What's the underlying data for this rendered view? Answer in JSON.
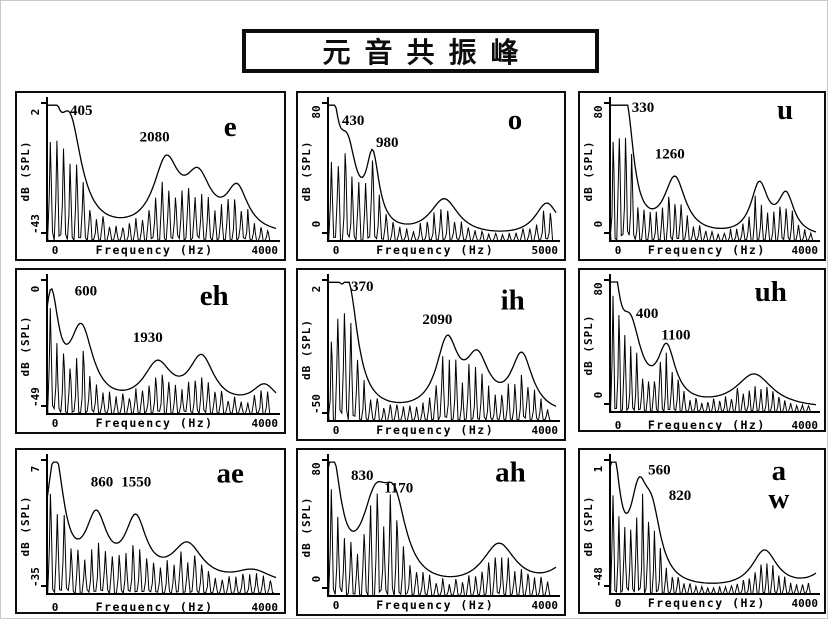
{
  "header": {
    "title": "元音共振峰"
  },
  "colors": {
    "ink": "#000000",
    "paper": "#ffffff"
  },
  "chart_data": [
    {
      "type": "line",
      "vowel": "e",
      "vowel_lines": [
        "e"
      ],
      "vowel_fx": 0.8,
      "vowel_fy": 0.25,
      "formants": [
        405,
        2080
      ],
      "formant_labels": [
        {
          "text": "405",
          "fx": 0.15,
          "fy": 0.1
        },
        {
          "text": "2080",
          "fx": 0.47,
          "fy": 0.29
        }
      ],
      "ylabel": "dB (SPL)",
      "xlabel": "Frequency (Hz)",
      "y_top": "2",
      "y_bottom": "-43",
      "x_min": "0",
      "x_max_label": "4000",
      "xlim": [
        0,
        4000
      ],
      "envelope_peaks": [
        [
          50,
          0.88,
          170
        ],
        [
          405,
          0.7,
          250
        ],
        [
          2080,
          0.48,
          270
        ],
        [
          2640,
          0.36,
          280
        ],
        [
          3320,
          0.3,
          230
        ]
      ],
      "baseline": 0.03,
      "harmonic_spacing": 115,
      "seed": 11,
      "x_label_dy": 13
    },
    {
      "type": "line",
      "vowel": "o",
      "vowel_lines": [
        "o"
      ],
      "vowel_fx": 0.82,
      "vowel_fy": 0.2,
      "formants": [
        430,
        980
      ],
      "formant_labels": [
        {
          "text": "430",
          "fx": 0.11,
          "fy": 0.17
        },
        {
          "text": "980",
          "fx": 0.26,
          "fy": 0.33
        }
      ],
      "ylabel": "dB (SPL)",
      "xlabel": "Frequency (Hz)",
      "y_top": "80",
      "y_bottom": "0",
      "x_min": "0",
      "x_max_label": "5000",
      "xlim": [
        0,
        5000
      ],
      "envelope_peaks": [
        [
          60,
          0.92,
          190
        ],
        [
          430,
          0.5,
          240
        ],
        [
          980,
          0.5,
          170
        ],
        [
          2550,
          0.26,
          380
        ],
        [
          4800,
          0.24,
          320
        ]
      ],
      "baseline": 0.02,
      "harmonic_spacing": 150,
      "seed": 23,
      "x_label_dy": 13
    },
    {
      "type": "line",
      "vowel": "u",
      "vowel_lines": [
        "u"
      ],
      "vowel_fx": 0.85,
      "vowel_fy": 0.13,
      "formants": [
        330,
        1260
      ],
      "formant_labels": [
        {
          "text": "330",
          "fx": 0.16,
          "fy": 0.08
        },
        {
          "text": "1260",
          "fx": 0.29,
          "fy": 0.41
        }
      ],
      "ylabel": "dB (SPL)",
      "xlabel": "Frequency (Hz)",
      "y_top": "80",
      "y_bottom": "0",
      "x_min": "0",
      "x_max_label": "4000",
      "xlim": [
        0,
        4000
      ],
      "envelope_peaks": [
        [
          60,
          0.95,
          160
        ],
        [
          330,
          0.7,
          160
        ],
        [
          1260,
          0.4,
          250
        ],
        [
          2900,
          0.36,
          200
        ],
        [
          3420,
          0.28,
          190
        ]
      ],
      "baseline": 0.02,
      "harmonic_spacing": 120,
      "seed": 37,
      "x_label_dy": 13
    },
    {
      "type": "line",
      "vowel": "eh",
      "vowel_lines": [
        "eh"
      ],
      "vowel_fx": 0.73,
      "vowel_fy": 0.2,
      "formants": [
        600,
        1930
      ],
      "formant_labels": [
        {
          "text": "600",
          "fx": 0.17,
          "fy": 0.13
        },
        {
          "text": "1930",
          "fx": 0.44,
          "fy": 0.47
        }
      ],
      "ylabel": "dB (SPL)",
      "xlabel": "Frequency (Hz)",
      "y_top": "0",
      "y_bottom": "-49",
      "x_min": "0",
      "x_max_label": "4000",
      "xlim": [
        0,
        4000
      ],
      "envelope_peaks": [
        [
          70,
          0.78,
          160
        ],
        [
          600,
          0.55,
          250
        ],
        [
          1930,
          0.3,
          300
        ],
        [
          2700,
          0.35,
          270
        ],
        [
          3800,
          0.16,
          260
        ]
      ],
      "baseline": 0.03,
      "harmonic_spacing": 115,
      "seed": 41,
      "x_label_dy": 13
    },
    {
      "type": "line",
      "vowel": "ih",
      "vowel_lines": [
        "ih"
      ],
      "vowel_fx": 0.81,
      "vowel_fy": 0.22,
      "formants": [
        370,
        2090
      ],
      "formant_labels": [
        {
          "text": "370",
          "fx": 0.15,
          "fy": 0.09
        },
        {
          "text": "2090",
          "fx": 0.48,
          "fy": 0.32
        }
      ],
      "ylabel": "dB (SPL)",
      "xlabel": "Frequency (Hz)",
      "y_top": "2",
      "y_bottom": "-50",
      "x_min": "0",
      "x_max_label": "4000",
      "xlim": [
        0,
        4000
      ],
      "envelope_peaks": [
        [
          60,
          0.9,
          170
        ],
        [
          370,
          0.72,
          190
        ],
        [
          2090,
          0.48,
          230
        ],
        [
          2620,
          0.35,
          250
        ],
        [
          3400,
          0.4,
          230
        ]
      ],
      "baseline": 0.03,
      "harmonic_spacing": 115,
      "seed": 53,
      "x_label_dy": 13
    },
    {
      "type": "line",
      "vowel": "uh",
      "vowel_lines": [
        "uh"
      ],
      "vowel_fx": 0.78,
      "vowel_fy": 0.17,
      "formants": [
        400,
        1100
      ],
      "formant_labels": [
        {
          "text": "400",
          "fx": 0.18,
          "fy": 0.3
        },
        {
          "text": "1100",
          "fx": 0.32,
          "fy": 0.46
        }
      ],
      "ylabel": "dB (SPL)",
      "xlabel": "Frequency (Hz)",
      "y_top": "80",
      "y_bottom": "0",
      "x_min": "0",
      "x_max_label": "4000",
      "xlim": [
        0,
        4000
      ],
      "envelope_peaks": [
        [
          50,
          0.95,
          150
        ],
        [
          400,
          0.52,
          250
        ],
        [
          1100,
          0.4,
          210
        ],
        [
          2800,
          0.25,
          430
        ]
      ],
      "baseline": 0.02,
      "harmonic_spacing": 115,
      "seed": 67,
      "x_label_dy": 17
    },
    {
      "type": "line",
      "vowel": "ae",
      "vowel_lines": [
        "ae"
      ],
      "vowel_fx": 0.8,
      "vowel_fy": 0.18,
      "formants": [
        860,
        1550
      ],
      "formant_labels": [
        {
          "text": "860",
          "fx": 0.24,
          "fy": 0.21
        },
        {
          "text": "1550",
          "fx": 0.39,
          "fy": 0.21
        }
      ],
      "ylabel": "dB (SPL)",
      "xlabel": "Frequency (Hz)",
      "y_top": "7",
      "y_bottom": "-35",
      "x_min": "0",
      "x_max_label": "4000",
      "xlim": [
        0,
        4000
      ],
      "envelope_peaks": [
        [
          140,
          0.92,
          190
        ],
        [
          860,
          0.45,
          230
        ],
        [
          1550,
          0.44,
          230
        ],
        [
          2450,
          0.28,
          330
        ],
        [
          3600,
          0.1,
          400
        ]
      ],
      "baseline": 0.05,
      "harmonic_spacing": 120,
      "seed": 71,
      "x_label_dy": 17
    },
    {
      "type": "line",
      "vowel": "ah",
      "vowel_lines": [
        "ah"
      ],
      "vowel_fx": 0.8,
      "vowel_fy": 0.17,
      "formants": [
        830,
        1170
      ],
      "formant_labels": [
        {
          "text": "830",
          "fx": 0.15,
          "fy": 0.16
        },
        {
          "text": "1170",
          "fx": 0.31,
          "fy": 0.25
        }
      ],
      "ylabel": "dB (SPL)",
      "xlabel": "Frequency (Hz)",
      "y_top": "80",
      "y_bottom": "0",
      "x_min": "0",
      "x_max_label": "4000",
      "xlim": [
        0,
        4000
      ],
      "envelope_peaks": [
        [
          70,
          0.92,
          190
        ],
        [
          830,
          0.55,
          290
        ],
        [
          1170,
          0.5,
          250
        ],
        [
          3000,
          0.32,
          360
        ],
        [
          4400,
          0.3,
          380
        ]
      ],
      "baseline": 0.02,
      "harmonic_spacing": 115,
      "seed": 83,
      "x_label_dy": 13
    },
    {
      "type": "line",
      "vowel": "aw",
      "vowel_lines": [
        "a",
        "w"
      ],
      "vowel_fx": 0.82,
      "vowel_fy": 0.16,
      "formants": [
        560,
        820
      ],
      "formant_labels": [
        {
          "text": "560",
          "fx": 0.24,
          "fy": 0.12
        },
        {
          "text": "820",
          "fx": 0.34,
          "fy": 0.31
        }
      ],
      "ylabel": "dB (SPL)",
      "xlabel": "Frequency (Hz)",
      "y_top": "1",
      "y_bottom": "-48",
      "x_min": "0",
      "x_max_label": "4000",
      "xlim": [
        0,
        4000
      ],
      "envelope_peaks": [
        [
          60,
          0.92,
          160
        ],
        [
          560,
          0.58,
          210
        ],
        [
          820,
          0.42,
          210
        ],
        [
          3000,
          0.28,
          300
        ],
        [
          4400,
          0.26,
          330
        ]
      ],
      "baseline": 0.02,
      "harmonic_spacing": 115,
      "seed": 97,
      "x_label_dy": 13
    }
  ]
}
